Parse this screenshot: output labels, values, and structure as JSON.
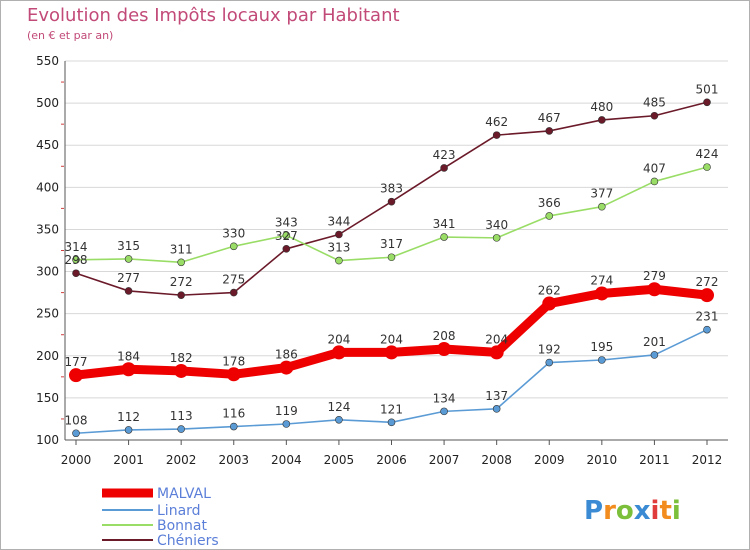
{
  "chart_data": {
    "type": "line",
    "title": "Evolution des Impôts locaux par Habitant",
    "subtitle": "(en € et par an)",
    "x": [
      "2000",
      "2001",
      "2002",
      "2003",
      "2004",
      "2005",
      "2006",
      "2007",
      "2008",
      "2009",
      "2010",
      "2011",
      "2012"
    ],
    "ylim": [
      100,
      550
    ],
    "yticks": [
      100,
      150,
      200,
      250,
      300,
      350,
      400,
      450,
      500,
      550
    ],
    "grid": true,
    "legend_position": "bottom-left",
    "series": [
      {
        "name": "MALVAL",
        "color": "#ee0000",
        "values": [
          177,
          184,
          182,
          178,
          186,
          204,
          204,
          208,
          204,
          262,
          274,
          279,
          272
        ]
      },
      {
        "name": "Linard",
        "color": "#5b9bd5",
        "values": [
          108,
          112,
          113,
          116,
          119,
          124,
          121,
          134,
          137,
          192,
          195,
          201,
          231
        ]
      },
      {
        "name": "Bonnat",
        "color": "#99dd66",
        "values": [
          314,
          315,
          311,
          330,
          343,
          313,
          317,
          341,
          340,
          366,
          377,
          407,
          424
        ]
      },
      {
        "name": "Chéniers",
        "color": "#6b1a2a",
        "values": [
          298,
          277,
          272,
          275,
          327,
          344,
          383,
          423,
          462,
          467,
          480,
          485,
          501
        ]
      }
    ]
  },
  "logo": {
    "text": "Proxiti",
    "letters": [
      "P",
      "r",
      "o",
      "x",
      "i",
      "t",
      "i"
    ],
    "colors": [
      "#3a8ad4",
      "#f28c1e",
      "#7bbf3a",
      "#3a8ad4",
      "#e03c3c",
      "#f28c1e",
      "#7bbf3a"
    ]
  }
}
